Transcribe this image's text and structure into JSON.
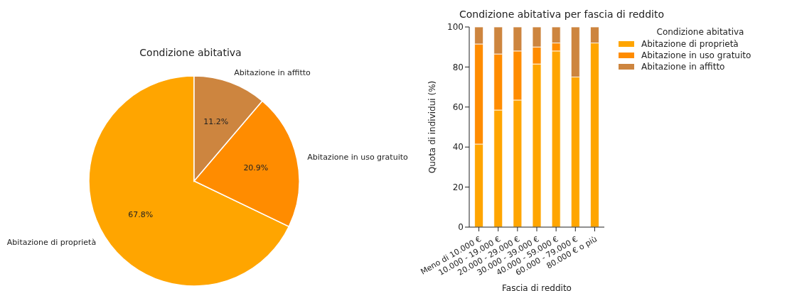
{
  "chart_data": [
    {
      "type": "pie",
      "title": "Condizione abitativa",
      "categories": [
        "Abitazione di proprietà",
        "Abitazione in uso gratuito",
        "Abitazione in affitto"
      ],
      "values": [
        67.8,
        20.9,
        11.2
      ],
      "colors": [
        "#ffa500",
        "#ff8c00",
        "#cd853f"
      ],
      "value_labels": [
        "67.8%",
        "20.9%",
        "11.2%"
      ],
      "legend": false
    },
    {
      "type": "bar",
      "title": "Condizione abitativa per fascia di reddito",
      "xlabel": "Fascia di reddito",
      "ylabel": "Quota di individui (%)",
      "legend_title": "Condizione abitativa",
      "categories": [
        "Meno di 10.000 €",
        "10.000 - 19.000 €",
        "20.000 - 29.000 €",
        "30.000 - 39.000 €",
        "40.000 - 59.000 €",
        "60.000 - 79.000 €",
        "80.000 € o più"
      ],
      "stacked": true,
      "ylim": [
        0,
        100
      ],
      "yticks": [
        0,
        20,
        40,
        60,
        80,
        100
      ],
      "grid": false,
      "legend": "right",
      "series": [
        {
          "name": "Abitazione di proprietà",
          "color": "#ffa500",
          "values": [
            41.5,
            58.5,
            63.5,
            81.5,
            88,
            75,
            92
          ]
        },
        {
          "name": "Abitazione in uso gratuito",
          "color": "#ff8c00",
          "values": [
            50,
            28,
            24.5,
            8.5,
            4,
            0,
            0
          ]
        },
        {
          "name": "Abitazione in affitto",
          "color": "#cd853f",
          "values": [
            8.5,
            13.5,
            12,
            10,
            8,
            25,
            8
          ]
        }
      ]
    }
  ]
}
